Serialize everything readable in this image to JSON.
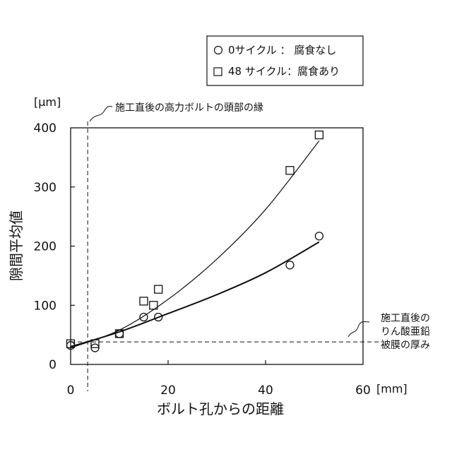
{
  "chart_data": {
    "type": "scatter",
    "xlabel": "ボルト孔からの距離",
    "ylabel": "隙間平均値",
    "x_unit": "[mm]",
    "y_unit": "[μm]",
    "xlim": [
      0,
      60
    ],
    "ylim": [
      0,
      400
    ],
    "x_ticks": [
      0,
      20,
      40,
      60
    ],
    "y_ticks": [
      0,
      100,
      200,
      300,
      400
    ],
    "grid": false,
    "legend_position": "top-right",
    "series": [
      {
        "name": "0サイクル ： 腐食なし",
        "marker": "circle",
        "points": [
          {
            "x": 0,
            "y": 32
          },
          {
            "x": 5,
            "y": 28
          },
          {
            "x": 10,
            "y": 52
          },
          {
            "x": 15,
            "y": 80
          },
          {
            "x": 18,
            "y": 80
          },
          {
            "x": 45,
            "y": 168
          },
          {
            "x": 51,
            "y": 217
          }
        ],
        "trend": [
          {
            "x": 0,
            "y": 30
          },
          {
            "x": 10,
            "y": 55
          },
          {
            "x": 20,
            "y": 86
          },
          {
            "x": 30,
            "y": 118
          },
          {
            "x": 40,
            "y": 155
          },
          {
            "x": 51,
            "y": 207
          }
        ]
      },
      {
        "name": "48 サイクル：腐食あり",
        "marker": "square",
        "points": [
          {
            "x": 0,
            "y": 35
          },
          {
            "x": 5,
            "y": 35
          },
          {
            "x": 10,
            "y": 52
          },
          {
            "x": 15,
            "y": 107
          },
          {
            "x": 17,
            "y": 100
          },
          {
            "x": 18,
            "y": 127
          },
          {
            "x": 45,
            "y": 328
          },
          {
            "x": 51,
            "y": 388
          }
        ],
        "trend": [
          {
            "x": 0,
            "y": 28
          },
          {
            "x": 10,
            "y": 58
          },
          {
            "x": 20,
            "y": 110
          },
          {
            "x": 30,
            "y": 178
          },
          {
            "x": 40,
            "y": 262
          },
          {
            "x": 51,
            "y": 378
          }
        ]
      }
    ],
    "reference_lines": {
      "vertical_x": 3.5,
      "horizontal_y": 38
    },
    "annotations": {
      "vertical": "施工直後の高力ボルトの頭部の縁",
      "horizontal": [
        "施工直後の",
        "りん酸亜鉛",
        "被膜の厚み"
      ]
    }
  }
}
